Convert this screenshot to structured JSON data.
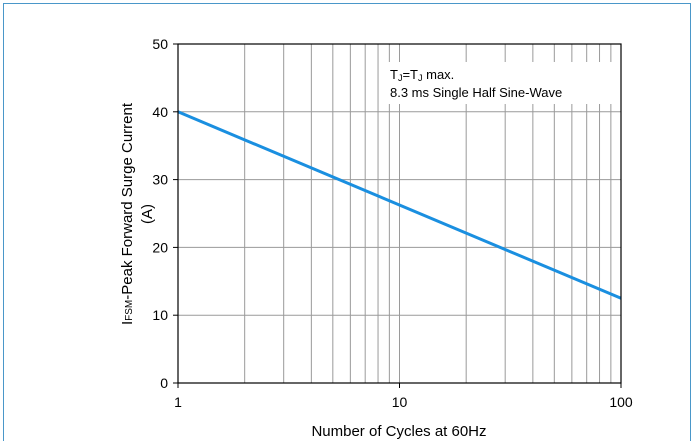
{
  "chart_data": {
    "type": "line",
    "xscale": "log",
    "xlim": [
      1,
      100
    ],
    "ylim": [
      0,
      50
    ],
    "xticks": [
      1,
      10,
      100
    ],
    "xtick_labels": [
      "1",
      "10",
      "100"
    ],
    "yticks": [
      0,
      10,
      20,
      30,
      40,
      50
    ],
    "ytick_labels": [
      "0",
      "10",
      "20",
      "30",
      "40",
      "50"
    ],
    "xlabel": "Number of Cycles at 60Hz",
    "ylabel": {
      "line1_main": "I",
      "line1_sub": "FSM",
      "line1_rest": "-Peak Forward Surge Current",
      "line2": "(A)"
    },
    "annotation": {
      "line1_a": "T",
      "line1_a_sub": "J",
      "line1_b": "=T",
      "line1_b_sub": "J",
      "line1_c": " max.",
      "line2": "8.3 ms Single Half Sine-Wave"
    },
    "grid": true,
    "series": [
      {
        "x": [
          1,
          100
        ],
        "y": [
          40,
          12.5
        ],
        "color": "#1a8fe0"
      }
    ]
  }
}
